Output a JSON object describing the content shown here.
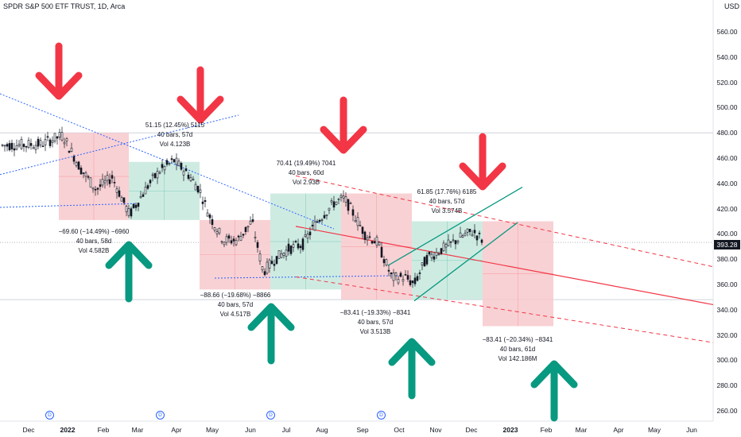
{
  "header": {
    "title": "SPDR S&P 500 ETF TRUST, 1D, Arca",
    "currency": "USD"
  },
  "price_axis": {
    "labels": [
      "560.00",
      "540.00",
      "520.00",
      "500.00",
      "480.00",
      "460.00",
      "440.00",
      "420.00",
      "400.00",
      "380.00",
      "360.00",
      "340.00",
      "320.00",
      "300.00",
      "280.00",
      "260.00"
    ],
    "values": [
      560,
      540,
      520,
      500,
      480,
      460,
      440,
      420,
      400,
      380,
      360,
      340,
      320,
      300,
      280,
      260
    ],
    "last_price": "393.28",
    "last_price_value": 393.28
  },
  "time_axis": {
    "labels": [
      {
        "text": "Dec",
        "bold": false
      },
      {
        "text": "2022",
        "bold": true
      },
      {
        "text": "Feb",
        "bold": false
      },
      {
        "text": "Mar",
        "bold": false
      },
      {
        "text": "Apr",
        "bold": false
      },
      {
        "text": "May",
        "bold": false
      },
      {
        "text": "Jun",
        "bold": false
      },
      {
        "text": "Jul",
        "bold": false
      },
      {
        "text": "Aug",
        "bold": false
      },
      {
        "text": "Sep",
        "bold": false
      },
      {
        "text": "Oct",
        "bold": false
      },
      {
        "text": "Nov",
        "bold": false
      },
      {
        "text": "Dec",
        "bold": false
      },
      {
        "text": "2023",
        "bold": true
      },
      {
        "text": "Feb",
        "bold": false
      },
      {
        "text": "Mar",
        "bold": false
      },
      {
        "text": "Apr",
        "bold": false
      },
      {
        "text": "May",
        "bold": false
      },
      {
        "text": "Jun",
        "bold": false
      }
    ]
  },
  "dividend_markers": [
    "D",
    "D",
    "D",
    "D"
  ],
  "annotations": [
    {
      "lines": [
        "51.15 (12.45%) 5115",
        "40 bars, 57d",
        "Vol 4.123B"
      ]
    },
    {
      "lines": [
        "70.41 (19.49%) 7041",
        "40 bars, 60d",
        "Vol 2.93B"
      ]
    },
    {
      "lines": [
        "61.85 (17.76%) 6185",
        "40 bars, 57d",
        "Vol 3.574B"
      ]
    },
    {
      "lines": [
        "−69.60 (−14.49%) −6960",
        "40 bars, 58d",
        "Vol 4.582B"
      ]
    },
    {
      "lines": [
        "−88.66 (−19.68%) −8866",
        "40 bars, 57d",
        "Vol 4.517B"
      ]
    },
    {
      "lines": [
        "−83.41 (−19.33%) −8341",
        "40 bars, 57d",
        "Vol 3.513B"
      ]
    },
    {
      "lines": [
        "−83.41 (−20.34%) −8341",
        "40 bars, 61d",
        "Vol 142.186M"
      ]
    }
  ],
  "colors": {
    "down_arrow": "#f23645",
    "up_arrow": "#089981",
    "down_box": "#f7c9cc",
    "up_box": "#c5e8dd",
    "regression": "#f23645",
    "trend_dotted": "#2962ff",
    "wedge": "#089981"
  }
}
